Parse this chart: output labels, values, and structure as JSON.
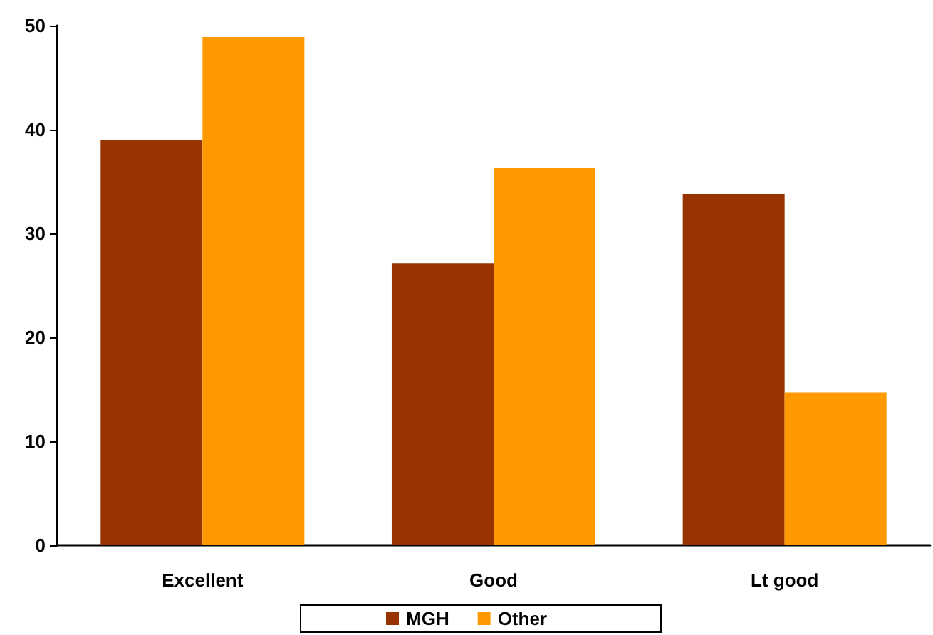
{
  "chart_data": {
    "type": "bar",
    "categories": [
      "Excellent",
      "Good",
      "Lt good"
    ],
    "series": [
      {
        "name": "MGH",
        "color": "#993300",
        "values": [
          39,
          27.1,
          33.8
        ]
      },
      {
        "name": "Other",
        "color": "#ff9900",
        "values": [
          48.9,
          36.3,
          14.7
        ]
      }
    ],
    "ylim": [
      0,
      50
    ],
    "yticks": [
      0,
      10,
      20,
      30,
      40,
      50
    ],
    "grid": false,
    "legend": "bottom"
  }
}
